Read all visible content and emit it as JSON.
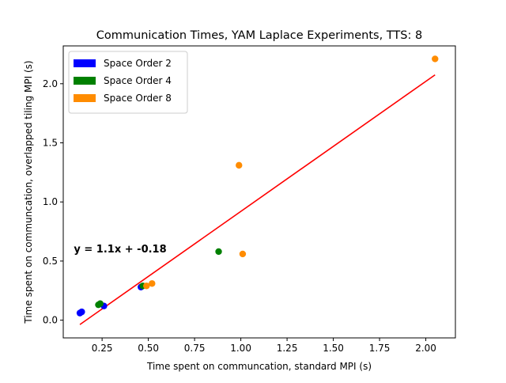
{
  "chart_data": {
    "type": "scatter",
    "title": "Communication Times, YAM Laplace Experiments, TTS: 8",
    "xlabel": "Time spent on communcation, standard MPI (s)",
    "ylabel": "Time spent on communcation, overlapped tiling MPI (s)",
    "xlim": [
      0.04,
      2.16
    ],
    "ylim": [
      -0.15,
      2.32
    ],
    "xticks": [
      0.25,
      0.5,
      0.75,
      1.0,
      1.25,
      1.5,
      1.75,
      2.0
    ],
    "xtick_labels": [
      "0.25",
      "0.50",
      "0.75",
      "1.00",
      "1.25",
      "1.50",
      "1.75",
      "2.00"
    ],
    "yticks": [
      0.0,
      0.5,
      1.0,
      1.5,
      2.0
    ],
    "ytick_labels": [
      "0.0",
      "0.5",
      "1.0",
      "1.5",
      "2.0"
    ],
    "grid": false,
    "legend_position": "top-left",
    "series": [
      {
        "name": "Space Order 2",
        "color": "#0000ff",
        "points": [
          [
            0.13,
            0.06
          ],
          [
            0.14,
            0.07
          ],
          [
            0.26,
            0.12
          ],
          [
            0.46,
            0.28
          ]
        ]
      },
      {
        "name": "Space Order 4",
        "color": "#008000",
        "points": [
          [
            0.23,
            0.13
          ],
          [
            0.24,
            0.14
          ],
          [
            0.47,
            0.29
          ],
          [
            0.88,
            0.58
          ]
        ]
      },
      {
        "name": "Space Order 8",
        "color": "#ff8c00",
        "points": [
          [
            0.49,
            0.29
          ],
          [
            0.52,
            0.31
          ],
          [
            0.99,
            1.31
          ],
          [
            1.01,
            0.56
          ],
          [
            2.05,
            2.21
          ]
        ]
      }
    ],
    "fit_line": {
      "color": "#ff0000",
      "x_range": [
        0.13,
        2.05
      ],
      "slope": 1.1,
      "intercept": -0.18
    },
    "annotation": {
      "text": "y = 1.1x + -0.18",
      "x": 0.14,
      "y": 0.56
    }
  }
}
